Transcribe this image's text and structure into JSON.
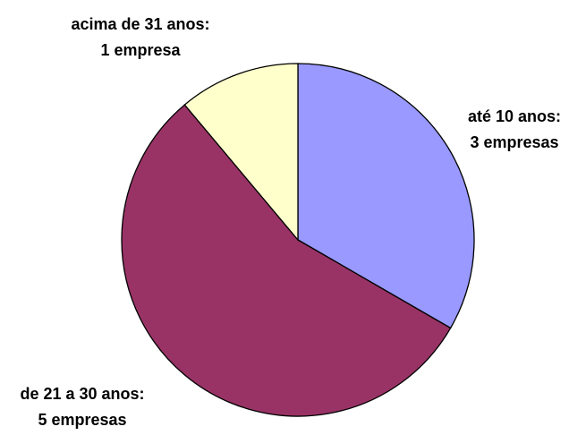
{
  "chart_data": {
    "type": "pie",
    "categories": [
      "até 10 anos:",
      "de 21 a 30 anos:",
      "acima de 31 anos:"
    ],
    "values": [
      3,
      5,
      1
    ],
    "value_labels": [
      "3 empresas",
      "5 empresas",
      "1 empresa"
    ],
    "colors": [
      "#9999ff",
      "#993366",
      "#ffffcc"
    ]
  }
}
